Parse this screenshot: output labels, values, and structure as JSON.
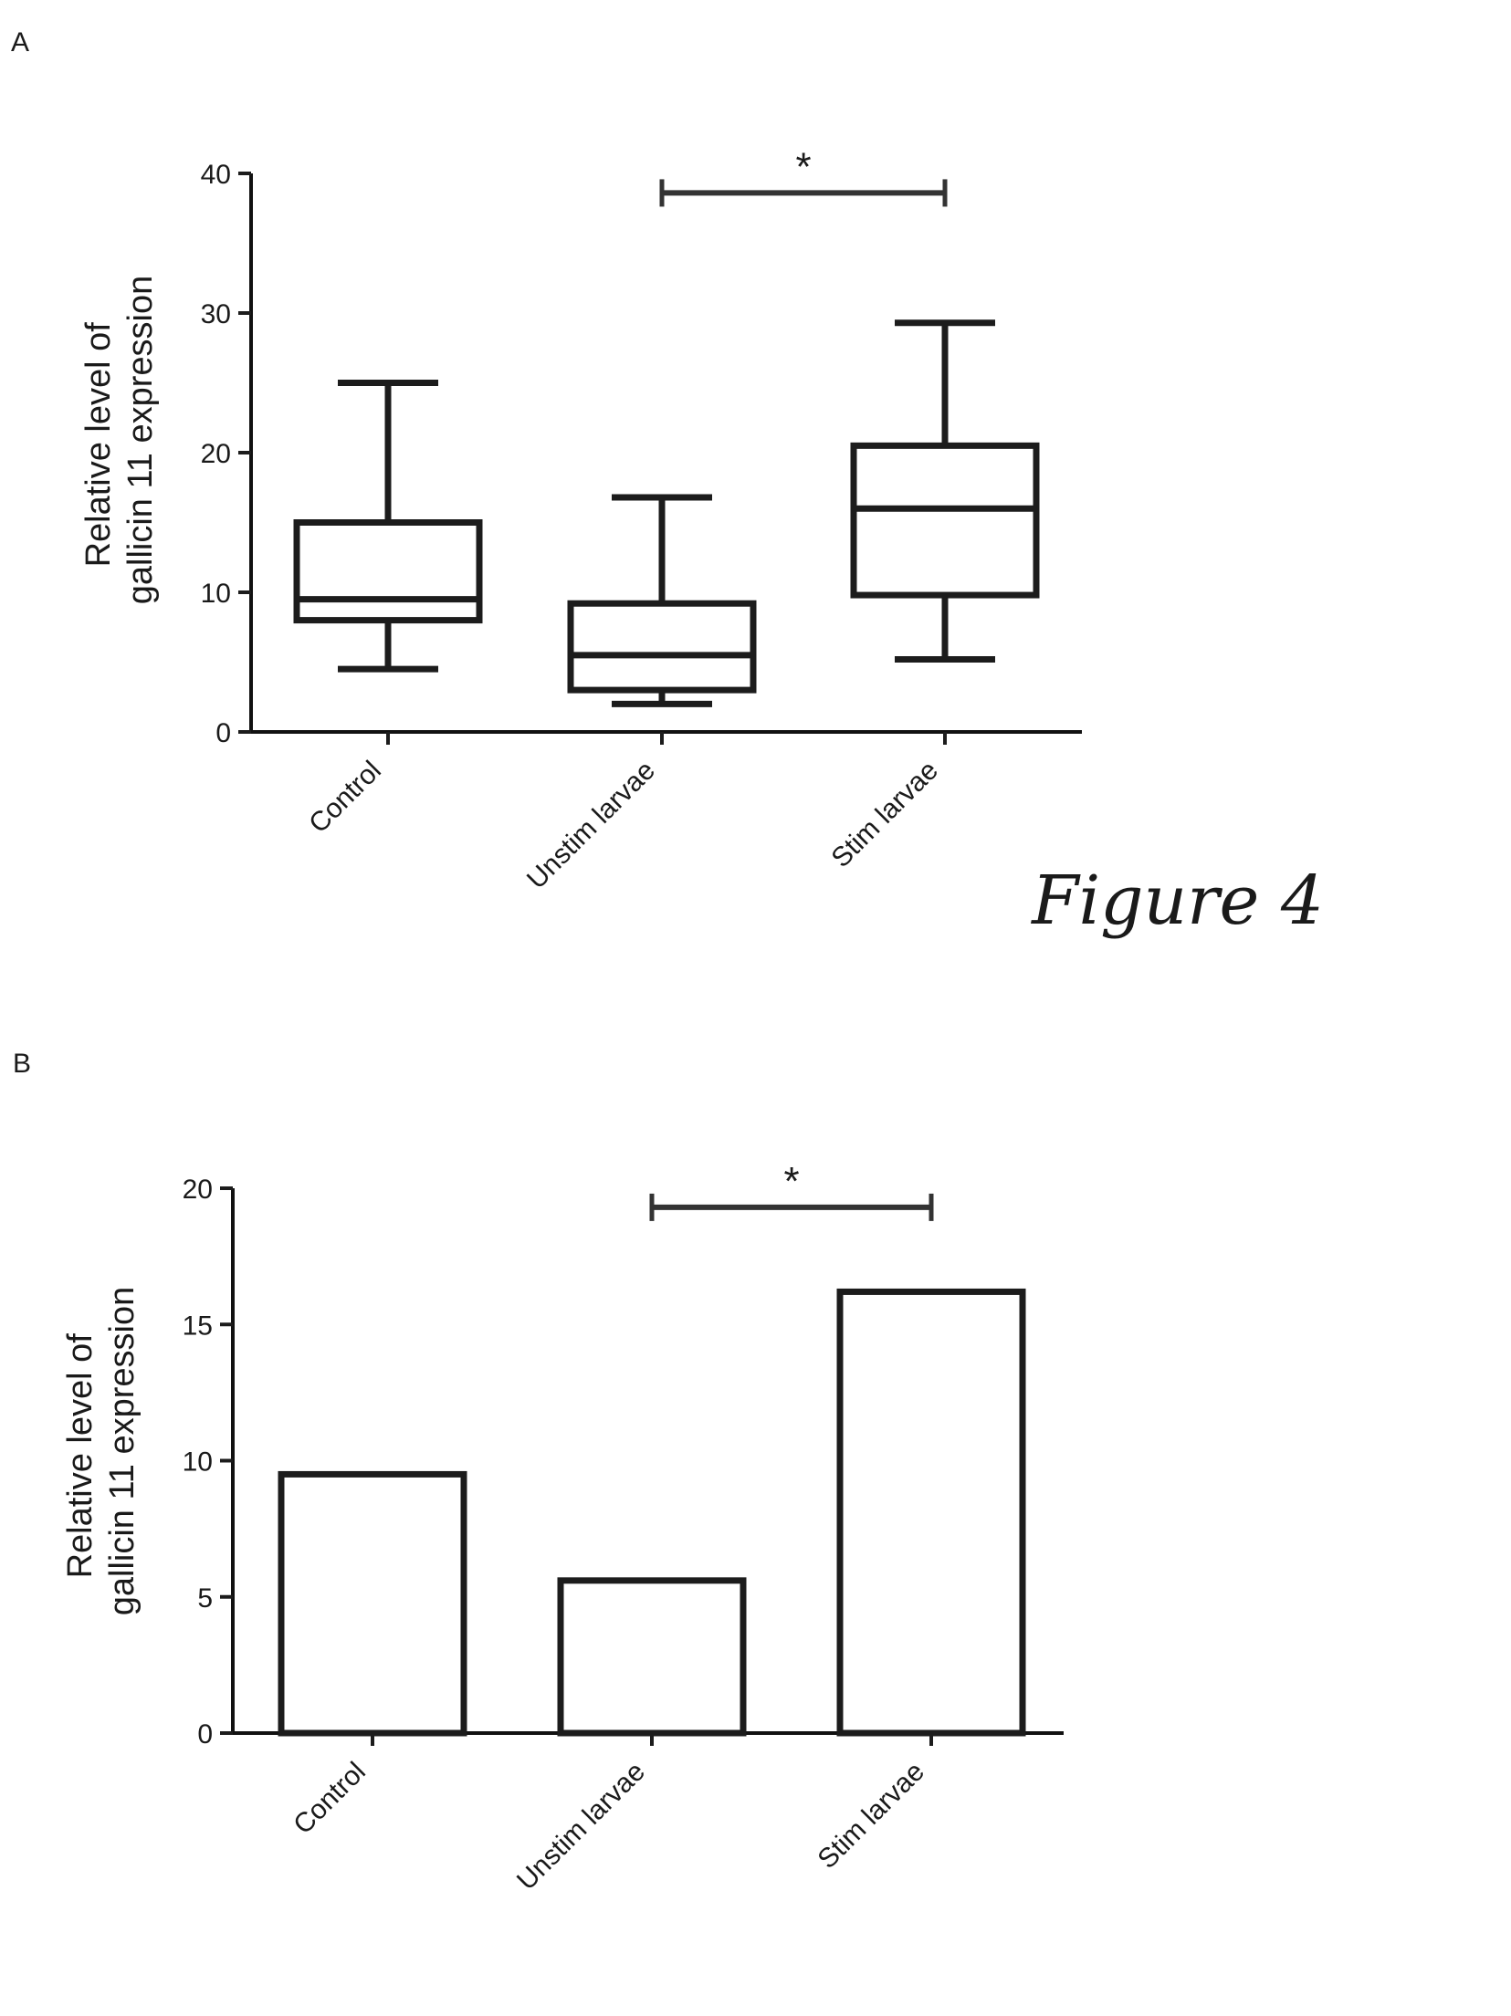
{
  "figure": {
    "caption": "Figure 4"
  },
  "chart_data": [
    {
      "panel": "A",
      "type": "box",
      "categories": [
        "Control",
        "Unstim larvae",
        "Stim larvae"
      ],
      "ylabel": "Relative level of gallicin 11 expression",
      "ylim": [
        0,
        40
      ],
      "yticks": [
        "0",
        "10",
        "20",
        "30",
        "40"
      ],
      "boxes": [
        {
          "min": 4.5,
          "q1": 8,
          "median": 9.5,
          "q3": 15,
          "max": 25
        },
        {
          "min": 2,
          "q1": 3,
          "median": 5.5,
          "q3": 9.2,
          "max": 16.8
        },
        {
          "min": 5.2,
          "q1": 9.8,
          "median": 16,
          "q3": 20.5,
          "max": 29.3
        }
      ],
      "significance": {
        "from": 1,
        "to": 2,
        "y": 38.6,
        "label": "*"
      }
    },
    {
      "panel": "B",
      "type": "bar",
      "categories": [
        "Control",
        "Unstim larvae",
        "Stim larvae"
      ],
      "values": [
        9.5,
        5.6,
        16.2
      ],
      "ylabel": "Relative level of gallicin 11 expression",
      "ylim": [
        0,
        20
      ],
      "yticks": [
        "0",
        "5",
        "10",
        "15",
        "20"
      ],
      "significance": {
        "from": 1,
        "to": 2,
        "y": 19.3,
        "label": "*"
      }
    }
  ]
}
